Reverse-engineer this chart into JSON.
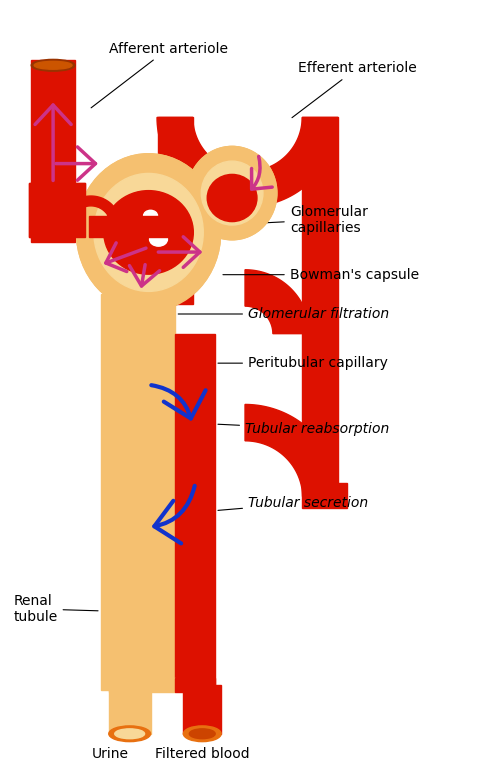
{
  "background_color": "#ffffff",
  "colors": {
    "red": "#dd1100",
    "red_dark": "#bb0000",
    "tan": "#f5c070",
    "tan_light": "#f8d898",
    "pink": "#cc3388",
    "blue": "#1133cc",
    "orange": "#e87010",
    "outline": "#222200"
  },
  "labels": {
    "afferent": "Afferent arteriole",
    "efferent": "Efferent arteriole",
    "glom_cap": "Glomerular\ncapillaries",
    "bowman": "Bowman's capsule",
    "glom_filt": "Glomerular filtration",
    "peritubular": "Peritubular capillary",
    "tubular_reabs": "Tubular reabsorption",
    "tubular_sec": "Tubular secretion",
    "renal": "Renal\ntubule",
    "urine": "Urine",
    "filtered": "Filtered blood"
  }
}
